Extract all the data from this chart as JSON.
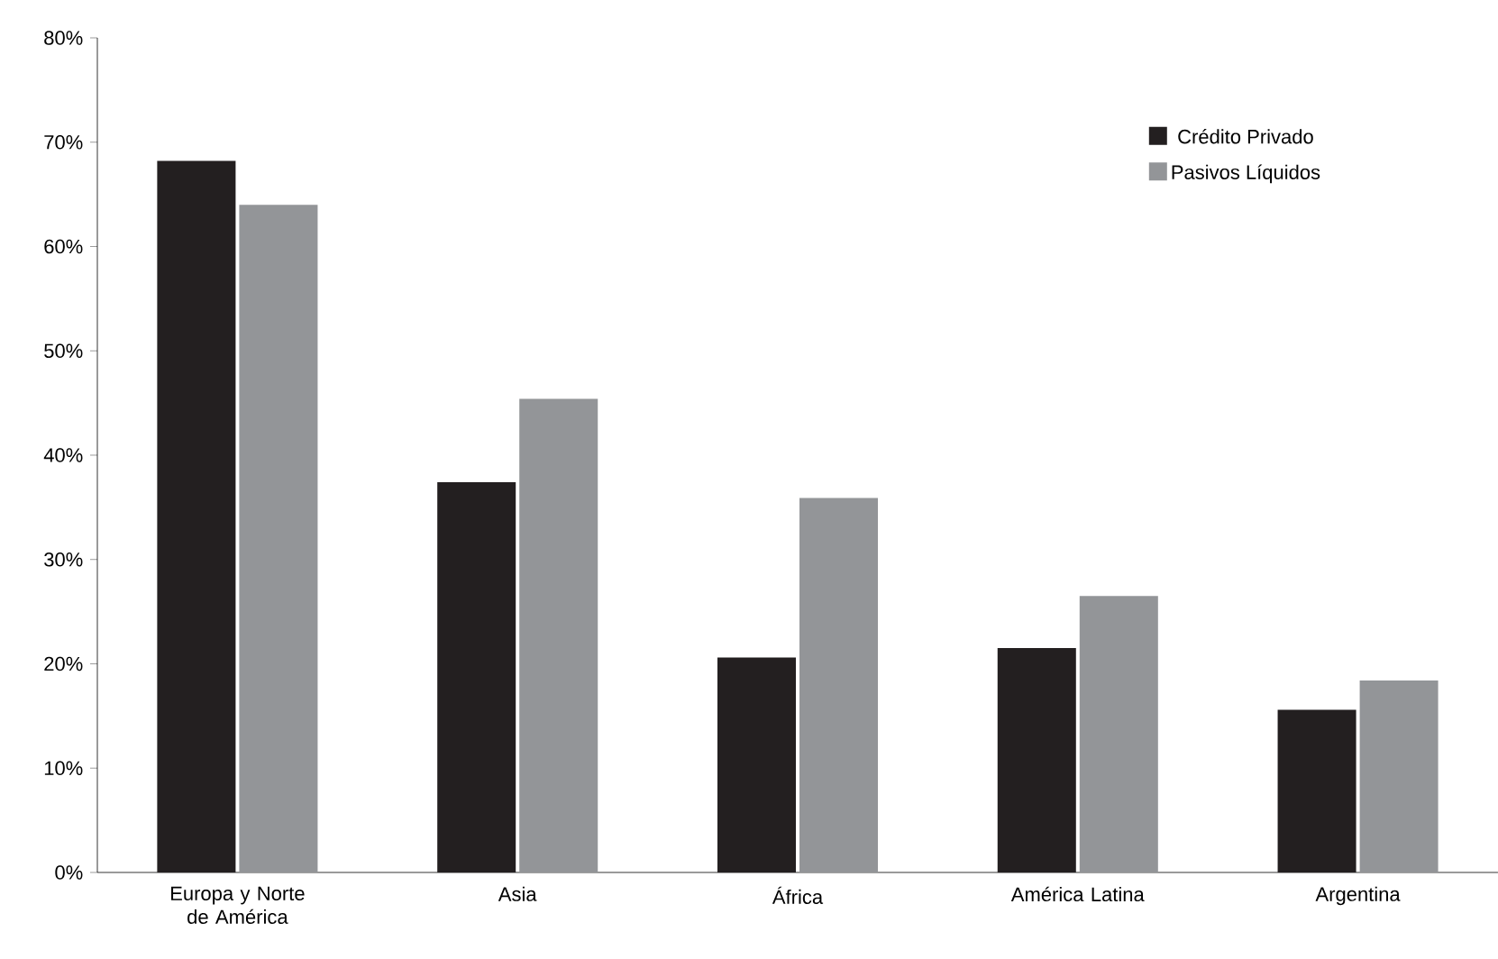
{
  "chart_data": {
    "type": "bar",
    "categories": [
      "Europa y Norte de América",
      "Asia",
      "África",
      "América Latina",
      "Argentina"
    ],
    "series": [
      {
        "name": "Crédito Privado",
        "color": "#231f20",
        "values": [
          68.2,
          37.4,
          20.6,
          21.5,
          15.6
        ]
      },
      {
        "name": "Pasivos Líquidos",
        "color": "#939598",
        "values": [
          64.0,
          45.4,
          35.9,
          26.5,
          18.4
        ]
      }
    ],
    "ylim": [
      0,
      80
    ],
    "yticks": [
      {
        "value": 0,
        "label": "0%"
      },
      {
        "value": 10,
        "label": "10%"
      },
      {
        "value": 20,
        "label": "20%"
      },
      {
        "value": 30,
        "label": "30%"
      },
      {
        "value": 40,
        "label": "40%"
      },
      {
        "value": 50,
        "label": "50%"
      },
      {
        "value": 60,
        "label": "60%"
      },
      {
        "value": 70,
        "label": "70%"
      },
      {
        "value": 80,
        "label": "80%"
      }
    ],
    "grid": false,
    "legend": "top right"
  }
}
